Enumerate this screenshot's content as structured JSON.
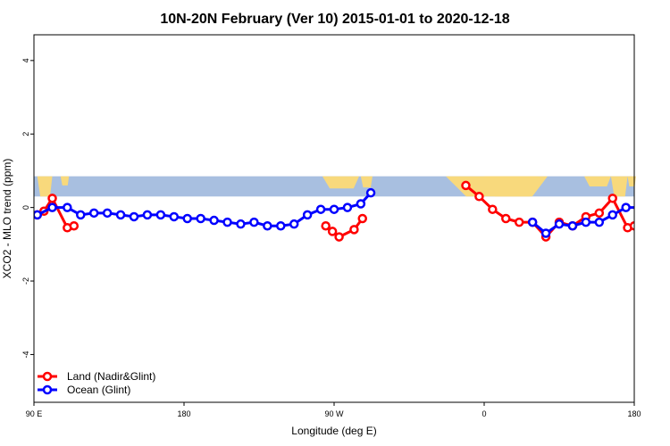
{
  "chart_data": {
    "type": "line",
    "title": "10N-20N February (Ver 10)   2015-01-01 to 2020-12-18",
    "xlabel": "Longitude (deg E)",
    "ylabel": "XCO2 - MLO trend (ppm)",
    "xlim": [
      90,
      450
    ],
    "ylim": [
      -5.3,
      4.7
    ],
    "x_ticks": [
      {
        "value": 90,
        "label": "90 E"
      },
      {
        "value": 180,
        "label": "180"
      },
      {
        "value": 270,
        "label": "90 W"
      },
      {
        "value": 360,
        "label": "0"
      },
      {
        "value": 450,
        "label": "180"
      }
    ],
    "y_ticks": [
      {
        "value": 4,
        "label": "4"
      },
      {
        "value": 2,
        "label": "2"
      },
      {
        "value": 0,
        "label": "0"
      },
      {
        "value": -2,
        "label": "-2"
      },
      {
        "value": -4,
        "label": "-4"
      }
    ],
    "legend_position": "bottom-left",
    "map_band": {
      "ylim": [
        0.3,
        0.85
      ],
      "ocean_color": "#a8bfe0",
      "land_color": "#f8d97c"
    },
    "series": [
      {
        "name": "Land (Nadir&Glint)",
        "color": "#ff0000",
        "segments": [
          [
            [
              92,
              -0.2
            ],
            [
              96,
              -0.1
            ],
            [
              101,
              0.25
            ],
            [
              110,
              -0.55
            ],
            [
              114,
              -0.5
            ]
          ],
          [
            [
              265,
              -0.5
            ],
            [
              269,
              -0.65
            ],
            [
              273,
              -0.8
            ],
            [
              282,
              -0.6
            ],
            [
              287,
              -0.3
            ]
          ],
          [
            [
              349,
              0.6
            ],
            [
              357,
              0.3
            ],
            [
              365,
              -0.05
            ],
            [
              373,
              -0.3
            ],
            [
              381,
              -0.4
            ],
            [
              389,
              -0.4
            ],
            [
              397,
              -0.8
            ],
            [
              405,
              -0.4
            ],
            [
              413,
              -0.5
            ],
            [
              421,
              -0.25
            ],
            [
              429,
              -0.15
            ],
            [
              437,
              0.25
            ],
            [
              446,
              -0.55
            ],
            [
              450,
              -0.5
            ]
          ]
        ]
      },
      {
        "name": "Ocean (Glint)",
        "color": "#0000ff",
        "segments": [
          [
            [
              92,
              -0.2
            ],
            [
              101,
              0.0
            ],
            [
              110,
              0.0
            ],
            [
              118,
              -0.2
            ],
            [
              126,
              -0.15
            ],
            [
              134,
              -0.15
            ],
            [
              142,
              -0.2
            ],
            [
              150,
              -0.25
            ],
            [
              158,
              -0.2
            ],
            [
              166,
              -0.2
            ],
            [
              174,
              -0.25
            ],
            [
              182,
              -0.3
            ],
            [
              190,
              -0.3
            ],
            [
              198,
              -0.35
            ],
            [
              206,
              -0.4
            ],
            [
              214,
              -0.45
            ],
            [
              222,
              -0.4
            ],
            [
              230,
              -0.5
            ],
            [
              238,
              -0.5
            ],
            [
              246,
              -0.45
            ],
            [
              254,
              -0.2
            ],
            [
              262,
              -0.05
            ],
            [
              270,
              -0.05
            ],
            [
              278,
              0.0
            ],
            [
              286,
              0.1
            ],
            [
              292,
              0.4
            ]
          ],
          [
            [
              389,
              -0.4
            ],
            [
              397,
              -0.7
            ],
            [
              405,
              -0.45
            ],
            [
              413,
              -0.5
            ],
            [
              421,
              -0.4
            ],
            [
              429,
              -0.4
            ],
            [
              437,
              -0.2
            ],
            [
              445,
              0.0
            ],
            [
              453,
              0.0
            ],
            [
              461,
              -0.2
            ],
            [
              469,
              -0.15
            ],
            [
              477,
              -0.15
            ],
            [
              485,
              -0.2
            ],
            [
              493,
              -0.25
            ],
            [
              501,
              -0.2
            ]
          ]
        ]
      }
    ]
  }
}
